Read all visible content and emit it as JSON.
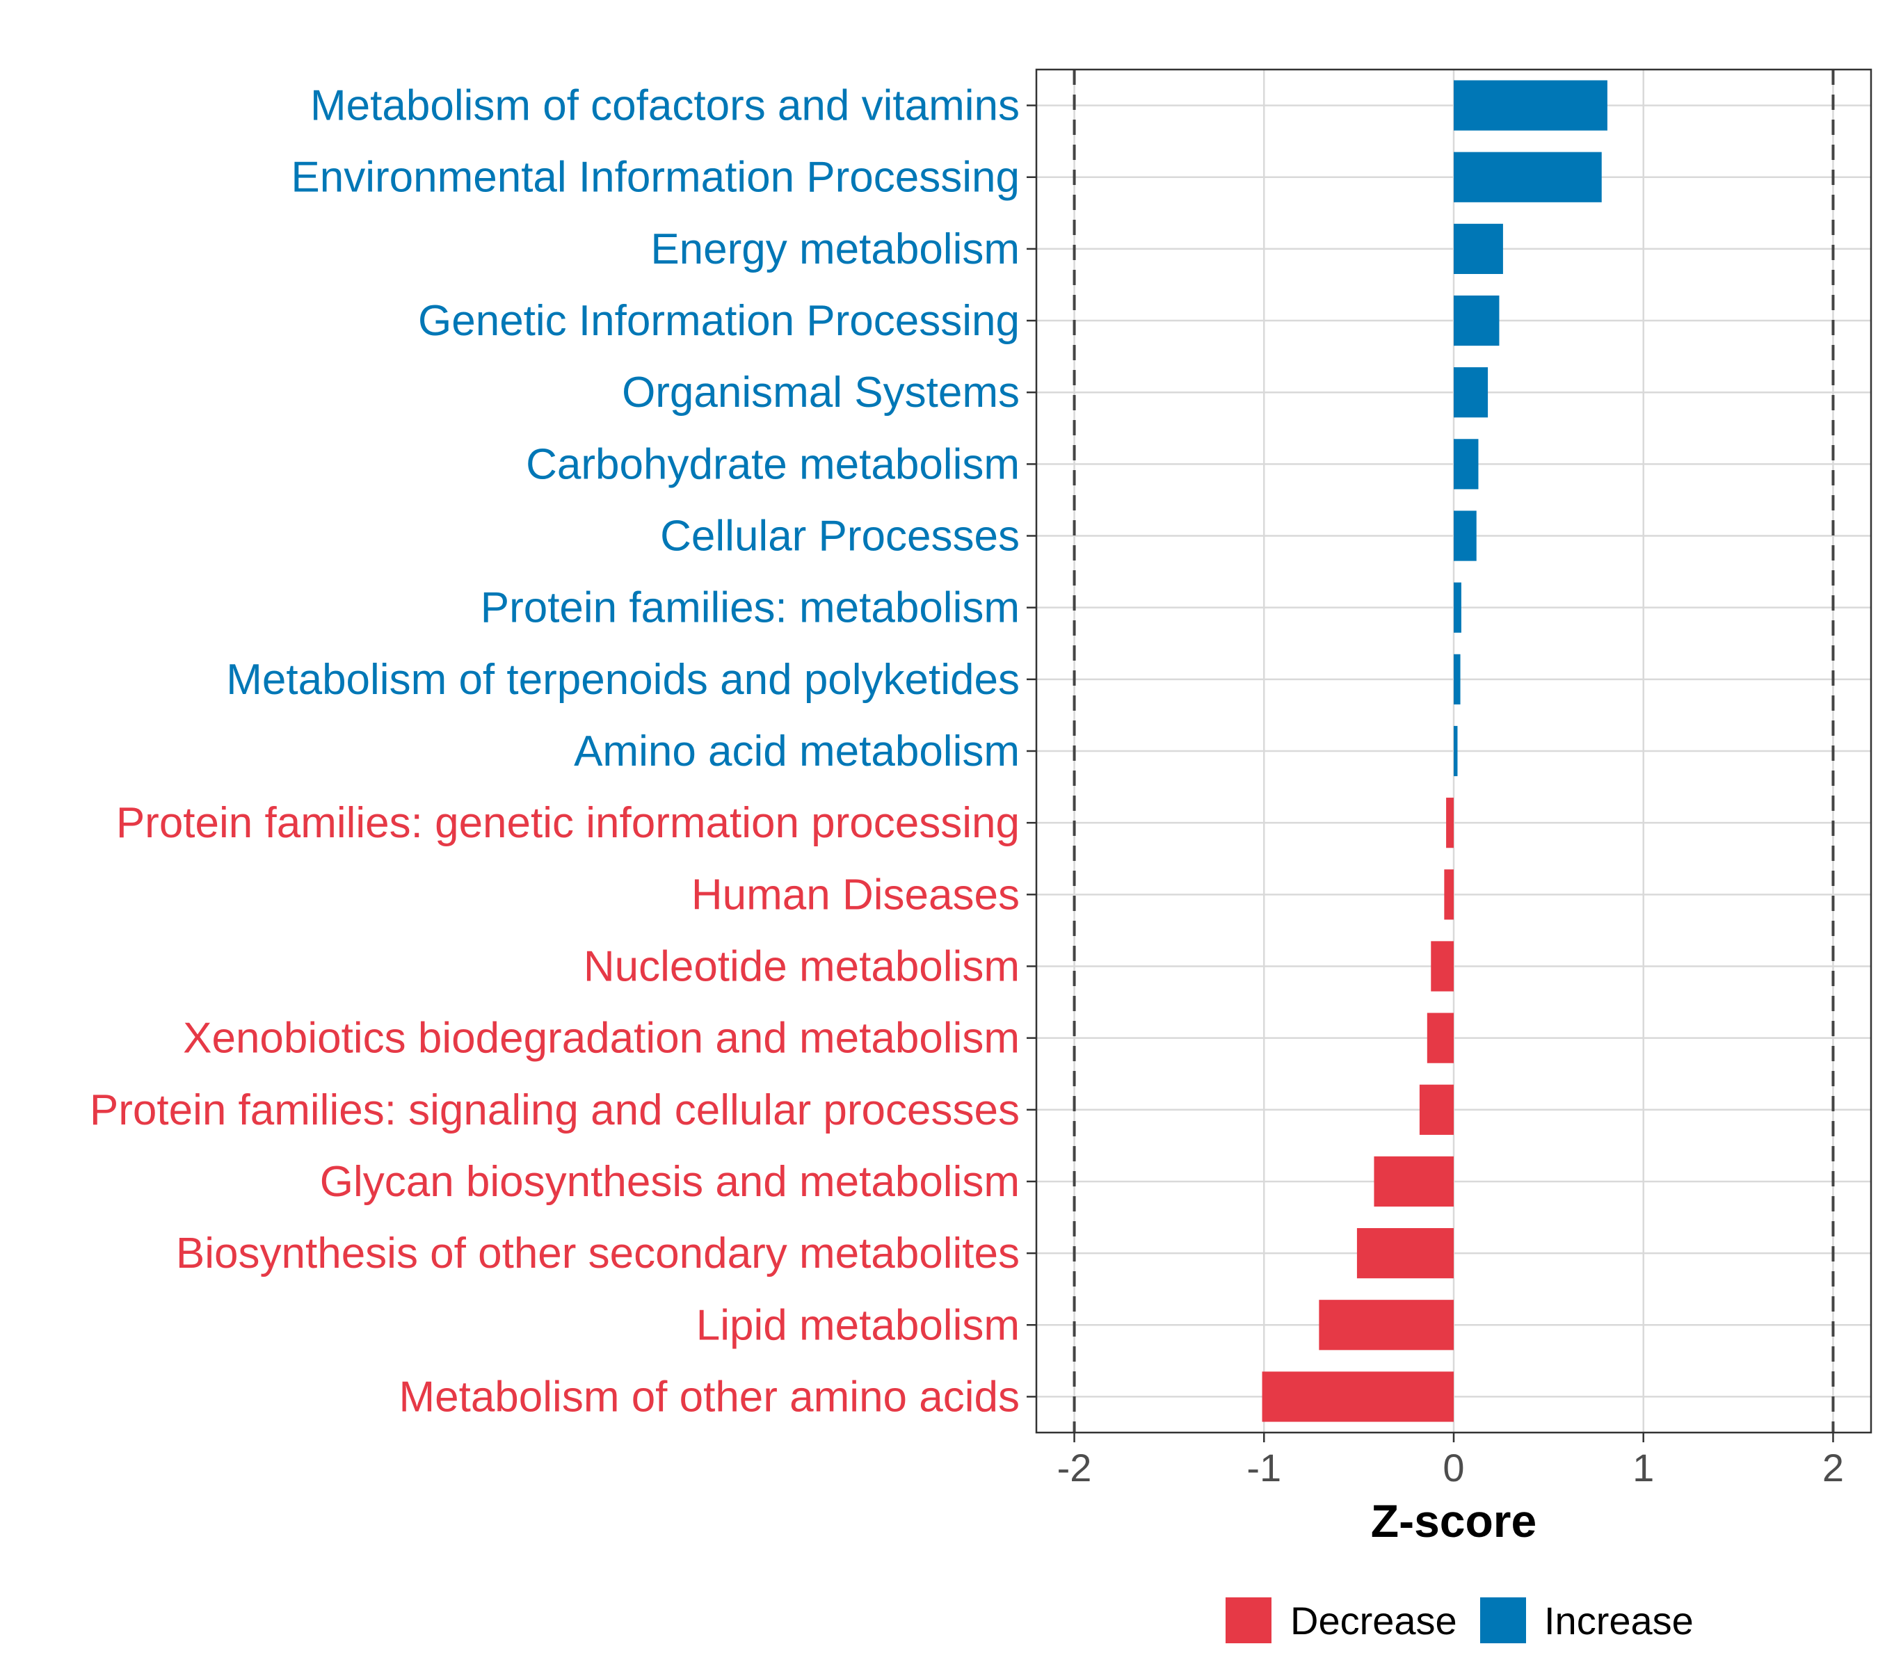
{
  "chart_data": {
    "type": "bar",
    "orientation": "horizontal",
    "xlabel": "Z-score",
    "xlim": [
      -2.2,
      2.2
    ],
    "xticks": [
      -2,
      -1,
      0,
      1,
      2
    ],
    "xtick_labels": [
      "-2",
      "-1",
      "0",
      "1",
      "2"
    ],
    "reference_lines": [
      -2,
      2
    ],
    "grid": true,
    "legend_position": "bottom",
    "legend": [
      {
        "key": "decrease",
        "label": "Decrease",
        "color": "#E63946"
      },
      {
        "key": "increase",
        "label": "Increase",
        "color": "#0077B6"
      }
    ],
    "colors": {
      "decrease": "#E63946",
      "increase": "#0077B6"
    },
    "categories": [
      "Metabolism of cofactors and vitamins",
      "Environmental Information Processing",
      "Energy metabolism",
      "Genetic Information Processing",
      "Organismal Systems",
      "Carbohydrate metabolism",
      "Cellular Processes",
      "Protein families: metabolism",
      "Metabolism of terpenoids and polyketides",
      "Amino acid metabolism",
      "Protein families: genetic information processing",
      "Human Diseases",
      "Nucleotide metabolism",
      "Xenobiotics biodegradation and metabolism",
      "Protein families: signaling and cellular processes",
      "Glycan biosynthesis and metabolism",
      "Biosynthesis of other secondary metabolites",
      "Lipid metabolism",
      "Metabolism of other amino acids"
    ],
    "values": [
      0.81,
      0.78,
      0.26,
      0.24,
      0.18,
      0.13,
      0.12,
      0.04,
      0.035,
      0.02,
      -0.04,
      -0.05,
      -0.12,
      -0.14,
      -0.18,
      -0.42,
      -0.51,
      -0.71,
      -1.01
    ],
    "groups": [
      "increase",
      "increase",
      "increase",
      "increase",
      "increase",
      "increase",
      "increase",
      "increase",
      "increase",
      "increase",
      "decrease",
      "decrease",
      "decrease",
      "decrease",
      "decrease",
      "decrease",
      "decrease",
      "decrease",
      "decrease"
    ]
  }
}
